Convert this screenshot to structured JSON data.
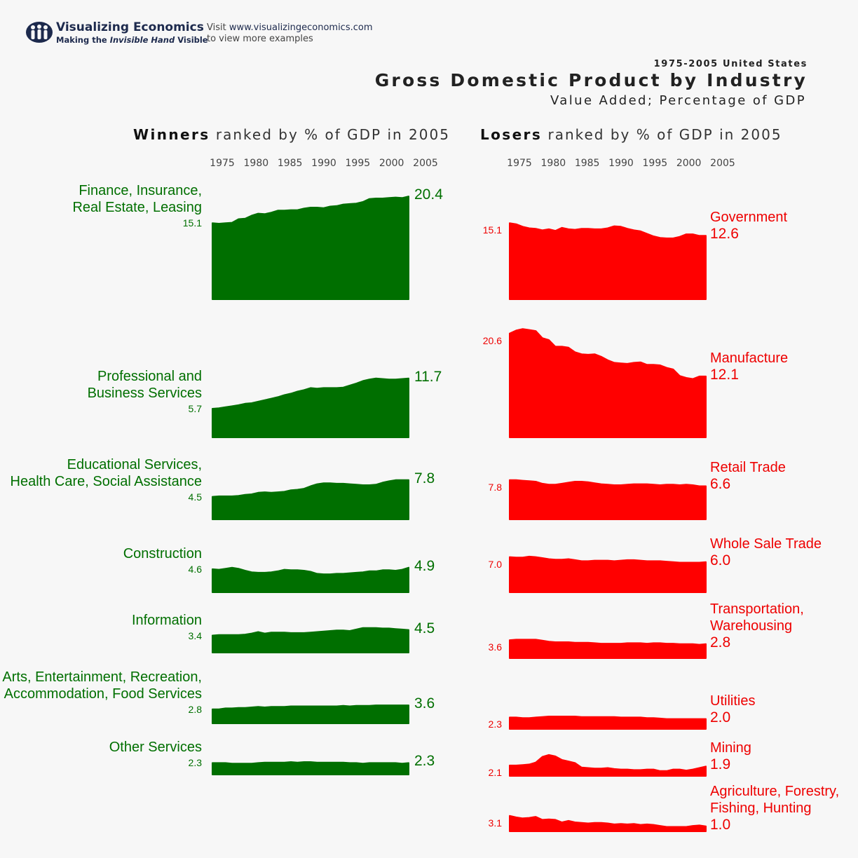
{
  "brand": {
    "name": "Visualizing Economics",
    "tagline_prefix": "Making the ",
    "tagline_italic": "Invisible Hand",
    "tagline_suffix": " Visible",
    "visit_text": "Visit ",
    "url": "www.visualizingeconomics.com",
    "visit_line2": "to view more examples",
    "logo_icon": "people-logo-icon"
  },
  "header": {
    "subtitle_top": "1975-2005 United States",
    "title": "Gross Domestic Product by Industry",
    "subtitle_bottom": "Value Added; Percentage of GDP"
  },
  "panels": {
    "winners": {
      "bold": "Winners",
      "rest": " ranked by % of GDP in 2005"
    },
    "losers": {
      "bold": "Losers",
      "rest": " ranked by % of GDP in 2005"
    }
  },
  "colors": {
    "winners": "#006f00",
    "losers": "#ff0000",
    "background": "#f7f7f7"
  },
  "chart_data": [
    {
      "type": "area",
      "title": "Winners ranked by % of GDP in 2005",
      "x_ticks": [
        "1975",
        "1980",
        "1985",
        "1990",
        "1995",
        "2000",
        "2005"
      ],
      "x_range": [
        1975,
        2005
      ],
      "series": [
        {
          "name": "Finance, Insurance, Real Estate, Leasing",
          "start_label": "15.1",
          "end_label": "20.4",
          "values": [
            15.1,
            15.0,
            15.1,
            15.2,
            15.9,
            16.0,
            16.6,
            17.0,
            16.9,
            17.2,
            17.6,
            17.6,
            17.7,
            17.7,
            18.0,
            18.2,
            18.2,
            18.1,
            18.4,
            18.5,
            18.8,
            18.9,
            19.0,
            19.3,
            19.9,
            20.0,
            20.0,
            20.1,
            20.2,
            20.1,
            20.4
          ]
        },
        {
          "name": "Professional and Business Services",
          "start_label": "5.7",
          "end_label": "11.7",
          "values": [
            5.7,
            5.8,
            6.0,
            6.2,
            6.4,
            6.7,
            6.8,
            7.1,
            7.4,
            7.7,
            8.0,
            8.4,
            8.7,
            9.1,
            9.4,
            9.8,
            9.7,
            9.8,
            9.8,
            9.8,
            9.9,
            10.3,
            10.7,
            11.2,
            11.5,
            11.7,
            11.6,
            11.5,
            11.5,
            11.6,
            11.7
          ]
        },
        {
          "name": "Educational Services, Health Care, Social Assistance",
          "start_label": "4.5",
          "end_label": "7.8",
          "values": [
            4.5,
            4.6,
            4.6,
            4.6,
            4.7,
            4.9,
            5.0,
            5.3,
            5.4,
            5.3,
            5.4,
            5.5,
            5.8,
            5.9,
            6.1,
            6.6,
            7.0,
            7.2,
            7.2,
            7.1,
            7.1,
            7.0,
            6.9,
            6.8,
            6.8,
            6.9,
            7.3,
            7.6,
            7.8,
            7.8,
            7.8
          ]
        },
        {
          "name": "Construction",
          "start_label": "4.6",
          "end_label": "4.9",
          "values": [
            4.6,
            4.5,
            4.7,
            4.9,
            4.7,
            4.3,
            4.0,
            3.9,
            3.9,
            4.0,
            4.2,
            4.5,
            4.4,
            4.4,
            4.3,
            4.1,
            3.7,
            3.6,
            3.6,
            3.7,
            3.7,
            3.8,
            3.9,
            4.0,
            4.2,
            4.2,
            4.4,
            4.4,
            4.3,
            4.5,
            4.9
          ]
        },
        {
          "name": "Information",
          "start_label": "3.4",
          "end_label": "4.5",
          "values": [
            3.4,
            3.5,
            3.5,
            3.5,
            3.5,
            3.6,
            3.8,
            4.1,
            3.8,
            4.0,
            4.0,
            4.0,
            3.9,
            3.9,
            3.9,
            4.0,
            4.1,
            4.2,
            4.3,
            4.4,
            4.4,
            4.3,
            4.6,
            4.9,
            4.9,
            4.9,
            4.8,
            4.8,
            4.7,
            4.6,
            4.5
          ]
        },
        {
          "name": "Arts, Entertainment, Recreation, Accommodation, Food Services",
          "start_label": "2.8",
          "end_label": "3.6",
          "values": [
            2.8,
            2.8,
            3.0,
            3.0,
            3.1,
            3.1,
            3.2,
            3.3,
            3.2,
            3.3,
            3.3,
            3.3,
            3.4,
            3.4,
            3.4,
            3.4,
            3.4,
            3.4,
            3.4,
            3.4,
            3.5,
            3.4,
            3.5,
            3.5,
            3.5,
            3.6,
            3.6,
            3.6,
            3.6,
            3.6,
            3.6
          ]
        },
        {
          "name": "Other Services",
          "start_label": "2.3",
          "end_label": "2.3",
          "values": [
            2.3,
            2.3,
            2.3,
            2.2,
            2.2,
            2.2,
            2.2,
            2.3,
            2.4,
            2.4,
            2.4,
            2.4,
            2.5,
            2.4,
            2.5,
            2.5,
            2.4,
            2.4,
            2.4,
            2.4,
            2.4,
            2.3,
            2.3,
            2.2,
            2.3,
            2.3,
            2.3,
            2.3,
            2.3,
            2.2,
            2.3
          ]
        }
      ]
    },
    {
      "type": "area",
      "title": "Losers ranked by % of GDP in 2005",
      "x_ticks": [
        "1975",
        "1980",
        "1985",
        "1990",
        "1995",
        "2000",
        "2005"
      ],
      "x_range": [
        1975,
        2005
      ],
      "series": [
        {
          "name": "Government",
          "start_label": "15.1",
          "end_label": "12.6",
          "values": [
            15.1,
            14.9,
            14.4,
            14.1,
            14.0,
            13.7,
            13.9,
            13.6,
            14.2,
            13.9,
            13.8,
            14.0,
            14.0,
            13.9,
            13.9,
            14.1,
            14.5,
            14.4,
            14.0,
            13.7,
            13.5,
            13.0,
            12.5,
            12.2,
            12.1,
            12.1,
            12.4,
            12.9,
            12.9,
            12.6,
            12.6
          ]
        },
        {
          "name": "Manufacture",
          "start_label": "20.6",
          "end_label": "12.1",
          "values": [
            20.6,
            21.2,
            21.5,
            21.3,
            21.1,
            19.7,
            19.3,
            18.0,
            18.0,
            17.8,
            16.9,
            16.5,
            16.4,
            16.5,
            16.0,
            15.3,
            14.8,
            14.7,
            14.6,
            14.8,
            14.9,
            14.4,
            14.4,
            14.3,
            13.8,
            13.5,
            12.2,
            11.8,
            11.6,
            12.1,
            12.1
          ]
        },
        {
          "name": "Retail Trade",
          "start_label": "7.8",
          "end_label": "6.6",
          "values": [
            7.8,
            7.8,
            7.7,
            7.6,
            7.5,
            7.1,
            6.9,
            6.9,
            7.1,
            7.3,
            7.5,
            7.5,
            7.4,
            7.2,
            7.0,
            6.9,
            6.8,
            6.8,
            6.9,
            7.0,
            7.0,
            7.0,
            6.9,
            6.8,
            6.9,
            6.9,
            6.8,
            6.9,
            6.8,
            6.6,
            6.6
          ]
        },
        {
          "name": "Whole Sale Trade",
          "start_label": "7.0",
          "end_label": "6.0",
          "values": [
            7.0,
            6.9,
            6.9,
            7.1,
            7.0,
            6.8,
            6.6,
            6.5,
            6.5,
            6.6,
            6.4,
            6.2,
            6.2,
            6.3,
            6.3,
            6.3,
            6.2,
            6.3,
            6.4,
            6.4,
            6.3,
            6.2,
            6.2,
            6.2,
            6.1,
            6.0,
            5.9,
            5.9,
            5.9,
            5.9,
            6.0
          ]
        },
        {
          "name": "Transportation, Warehousing",
          "start_label": "3.6",
          "end_label": "2.8",
          "values": [
            3.6,
            3.7,
            3.7,
            3.7,
            3.7,
            3.5,
            3.3,
            3.2,
            3.2,
            3.2,
            3.1,
            3.1,
            3.1,
            3.0,
            2.9,
            2.9,
            2.9,
            2.9,
            3.0,
            3.0,
            3.0,
            2.9,
            3.0,
            3.0,
            2.9,
            2.9,
            2.8,
            2.8,
            2.8,
            2.7,
            2.8
          ]
        },
        {
          "name": "Utilities",
          "start_label": "2.3",
          "end_label": "2.0",
          "values": [
            2.3,
            2.3,
            2.2,
            2.2,
            2.3,
            2.4,
            2.5,
            2.5,
            2.5,
            2.5,
            2.5,
            2.4,
            2.4,
            2.4,
            2.4,
            2.4,
            2.4,
            2.3,
            2.3,
            2.3,
            2.3,
            2.2,
            2.2,
            2.1,
            2.0,
            2.0,
            2.0,
            2.0,
            2.0,
            2.0,
            2.0
          ]
        },
        {
          "name": "Mining",
          "start_label": "2.1",
          "end_label": "1.9",
          "values": [
            2.1,
            2.1,
            2.2,
            2.3,
            2.7,
            3.8,
            4.2,
            3.9,
            3.2,
            2.9,
            2.6,
            1.7,
            1.6,
            1.5,
            1.5,
            1.6,
            1.4,
            1.3,
            1.3,
            1.2,
            1.2,
            1.3,
            1.3,
            1.0,
            1.0,
            1.3,
            1.3,
            1.1,
            1.3,
            1.6,
            1.9
          ]
        },
        {
          "name": "Agriculture, Forestry, Fishing, Hunting",
          "start_label": "3.1",
          "end_label": "1.0",
          "values": [
            3.1,
            2.8,
            2.6,
            2.7,
            2.9,
            2.3,
            2.4,
            2.3,
            1.8,
            2.1,
            1.8,
            1.7,
            1.6,
            1.7,
            1.7,
            1.6,
            1.4,
            1.5,
            1.4,
            1.5,
            1.3,
            1.4,
            1.3,
            1.1,
            0.9,
            0.9,
            0.9,
            0.9,
            1.1,
            1.2,
            1.0
          ]
        }
      ]
    }
  ]
}
